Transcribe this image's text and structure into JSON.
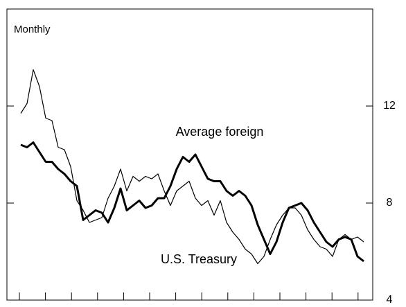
{
  "chart_data": {
    "type": "line",
    "subtitle": "Monthly",
    "categories": [
      null,
      null,
      null,
      null,
      null,
      null,
      null,
      null,
      null,
      null,
      null,
      null,
      null,
      null,
      null,
      null,
      null,
      null,
      null,
      null,
      null,
      null,
      null,
      null,
      null,
      null,
      null,
      null,
      null,
      null,
      null,
      null,
      null,
      null,
      null,
      null,
      null,
      null,
      null,
      null,
      null,
      null,
      null,
      null,
      null,
      null,
      null,
      null,
      null,
      null,
      null,
      null,
      null,
      null,
      null,
      null
    ],
    "series": [
      {
        "name": "Average foreign",
        "color": "#000000",
        "values": [
          10.4,
          10.3,
          10.5,
          10.1,
          9.7,
          9.7,
          9.4,
          9.2,
          8.9,
          8.7,
          7.3,
          7.5,
          7.7,
          7.6,
          7.2,
          7.8,
          8.6,
          7.7,
          7.9,
          8.1,
          7.8,
          7.9,
          8.2,
          8.2,
          8.7,
          9.4,
          9.9,
          9.7,
          10.0,
          9.5,
          9.0,
          8.9,
          8.9,
          8.5,
          8.3,
          8.5,
          8.3,
          7.9,
          7.1,
          6.5,
          5.9,
          6.4,
          7.2,
          7.8,
          7.9,
          8.0,
          7.7,
          7.2,
          6.8,
          6.4,
          6.2,
          6.5,
          6.6,
          6.5,
          5.8,
          5.6
        ]
      },
      {
        "name": "U.S. Treasury",
        "color": "#000000",
        "values": [
          11.7,
          12.1,
          13.5,
          12.8,
          11.5,
          11.4,
          10.3,
          10.2,
          9.5,
          8.1,
          7.7,
          7.2,
          7.3,
          7.4,
          8.2,
          8.7,
          9.4,
          8.5,
          9.1,
          8.9,
          9.1,
          9.0,
          9.2,
          8.5,
          7.9,
          8.5,
          8.7,
          8.9,
          8.2,
          7.9,
          8.1,
          7.5,
          8.1,
          7.2,
          6.8,
          6.5,
          6.1,
          5.9,
          5.5,
          5.8,
          6.5,
          7.1,
          7.5,
          7.8,
          7.8,
          7.5,
          6.9,
          6.5,
          6.2,
          6.1,
          5.8,
          6.5,
          6.7,
          6.5,
          6.6,
          6.4
        ]
      }
    ],
    "ylim": [
      4,
      16
    ],
    "yticks": [
      4,
      8,
      12
    ]
  }
}
